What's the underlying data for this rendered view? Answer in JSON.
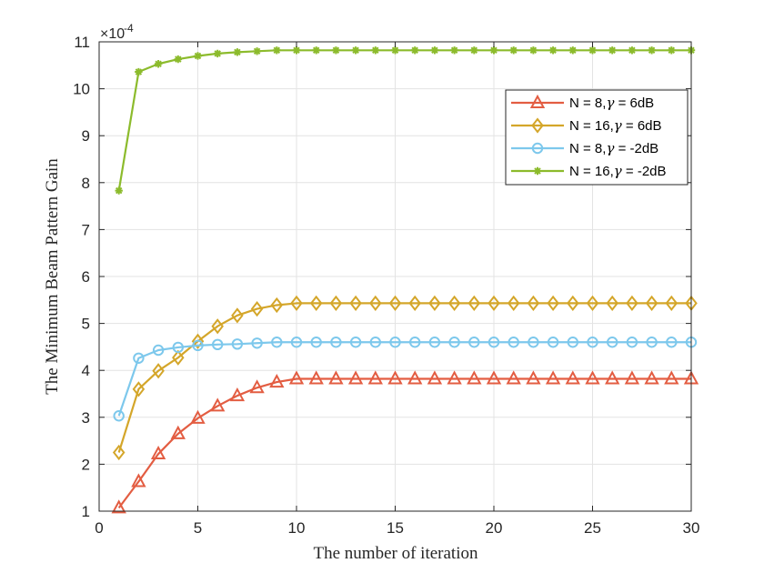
{
  "chart_data": {
    "type": "line",
    "title": "",
    "xlabel": "The number of iteration",
    "ylabel": "The Minimum Beam Pattern Gain",
    "xlim": [
      0,
      30
    ],
    "ylim": [
      1,
      11
    ],
    "xticks": [
      0,
      5,
      10,
      15,
      20,
      25,
      30
    ],
    "yticks": [
      1,
      2,
      3,
      4,
      5,
      6,
      7,
      8,
      9,
      10,
      11
    ],
    "y_exponent_base": "×10",
    "y_exponent_power": "-4",
    "grid": true,
    "legend_position": "upper-right",
    "x": [
      1,
      2,
      3,
      4,
      5,
      6,
      7,
      8,
      9,
      10,
      11,
      12,
      13,
      14,
      15,
      16,
      17,
      18,
      19,
      20,
      21,
      22,
      23,
      24,
      25,
      26,
      27,
      28,
      29,
      30
    ],
    "series": [
      {
        "name": "N = 8,γ = 6dB",
        "legend_pre": "N = 8,",
        "legend_symbol": "γ",
        "legend_post": " = 6dB",
        "color": "#E35D42",
        "marker": "triangle",
        "values": [
          1.07,
          1.63,
          2.22,
          2.65,
          2.98,
          3.24,
          3.46,
          3.63,
          3.75,
          3.82,
          3.82,
          3.82,
          3.82,
          3.82,
          3.82,
          3.82,
          3.82,
          3.82,
          3.82,
          3.82,
          3.82,
          3.82,
          3.82,
          3.82,
          3.82,
          3.82,
          3.82,
          3.82,
          3.82,
          3.82
        ]
      },
      {
        "name": "N = 16,γ = 6dB",
        "legend_pre": "N = 16,",
        "legend_symbol": "γ",
        "legend_post": " = 6dB",
        "color": "#D4A62A",
        "marker": "diamond",
        "values": [
          2.25,
          3.6,
          3.99,
          4.27,
          4.62,
          4.94,
          5.17,
          5.31,
          5.39,
          5.43,
          5.43,
          5.43,
          5.43,
          5.43,
          5.43,
          5.43,
          5.43,
          5.43,
          5.43,
          5.43,
          5.43,
          5.43,
          5.43,
          5.43,
          5.43,
          5.43,
          5.43,
          5.43,
          5.43,
          5.43
        ]
      },
      {
        "name": "N = 8,γ = -2dB",
        "legend_pre": "N = 8,",
        "legend_symbol": "γ",
        "legend_post": " = -2dB",
        "color": "#7DC8EC",
        "marker": "circle",
        "values": [
          3.03,
          4.26,
          4.43,
          4.49,
          4.53,
          4.55,
          4.56,
          4.58,
          4.6,
          4.6,
          4.6,
          4.6,
          4.6,
          4.6,
          4.6,
          4.6,
          4.6,
          4.6,
          4.6,
          4.6,
          4.6,
          4.6,
          4.6,
          4.6,
          4.6,
          4.6,
          4.6,
          4.6,
          4.6,
          4.6
        ]
      },
      {
        "name": "N = 16,γ = -2dB",
        "legend_pre": "N = 16,",
        "legend_symbol": "γ",
        "legend_post": " = -2dB",
        "color": "#8CBB2C",
        "marker": "asterisk",
        "values": [
          7.83,
          10.36,
          10.53,
          10.63,
          10.7,
          10.75,
          10.78,
          10.8,
          10.82,
          10.82,
          10.82,
          10.82,
          10.82,
          10.82,
          10.82,
          10.82,
          10.82,
          10.82,
          10.82,
          10.82,
          10.82,
          10.82,
          10.82,
          10.82,
          10.82,
          10.82,
          10.82,
          10.82,
          10.82,
          10.82
        ]
      }
    ]
  }
}
